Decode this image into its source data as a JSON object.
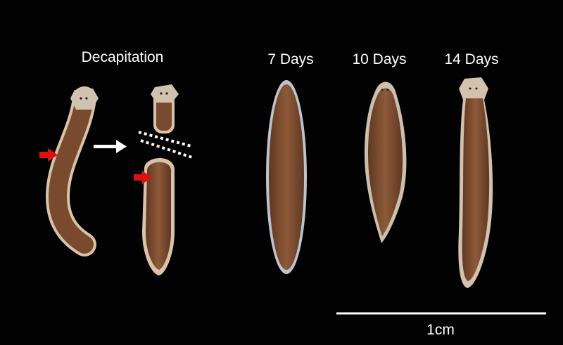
{
  "labels": {
    "decapitation": "Decapitation",
    "day7": "7 Days",
    "day10": "10 Days",
    "day14": "14 Days"
  },
  "scale_bar": {
    "label": "1cm"
  },
  "colors": {
    "background": "#000000",
    "worm_body": "#7a4a2e",
    "worm_edge": "#d8c3a8",
    "marker_arrow": "#e01010",
    "annotation": "#ffffff"
  }
}
